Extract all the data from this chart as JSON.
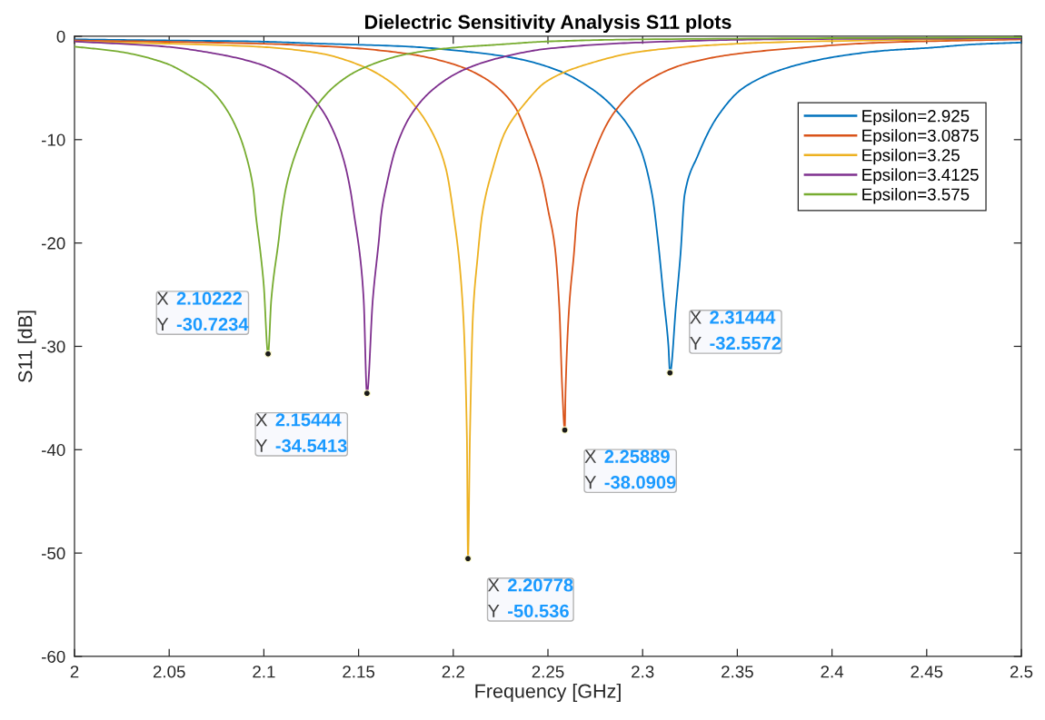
{
  "chart_data": {
    "type": "line",
    "title": "Dielectric Sensitivity Analysis S11 plots",
    "xlabel": "Frequency [GHz]",
    "ylabel": "S11 [dB]",
    "xlim": [
      2,
      2.5
    ],
    "ylim": [
      -60,
      0
    ],
    "xticks": [
      2,
      2.05,
      2.1,
      2.15,
      2.2,
      2.25,
      2.3,
      2.35,
      2.4,
      2.45,
      2.5
    ],
    "yticks": [
      -60,
      -50,
      -40,
      -30,
      -20,
      -10,
      0
    ],
    "legend": "top right",
    "line_style": "solid",
    "series": [
      {
        "name": "Epsilon=2.925",
        "color": "#0072bd",
        "x": [
          2.0,
          2.048,
          2.0951,
          2.128,
          2.1768,
          2.2081,
          2.2321,
          2.2553,
          2.2725,
          2.2862,
          2.2982,
          2.305,
          2.308,
          2.3112,
          2.3136,
          2.31444,
          2.3176,
          2.32,
          2.3222,
          2.329,
          2.3394,
          2.3531,
          2.3754,
          2.4012,
          2.4269,
          2.4526,
          2.473,
          2.5
        ],
        "values": [
          -0.3,
          -0.4,
          -0.5,
          -0.7,
          -1.0,
          -1.5,
          -2.1,
          -3.3,
          -5.0,
          -7.2,
          -10.6,
          -15.3,
          -19.6,
          -25.5,
          -29.9,
          -32.5572,
          -26.1,
          -21.1,
          -15.3,
          -11.6,
          -7.8,
          -5.0,
          -3.1,
          -2.0,
          -1.4,
          -1.1,
          -0.8,
          -0.6
        ]
      },
      {
        "name": "Epsilon=3.0875",
        "color": "#d95319",
        "x": [
          2.0,
          2.0961,
          2.1441,
          2.1761,
          2.2001,
          2.2161,
          2.2321,
          2.2399,
          2.2467,
          2.2502,
          2.2536,
          2.256,
          2.2576,
          2.25889,
          2.2593,
          2.2612,
          2.2637,
          2.2656,
          2.2725,
          2.2845,
          2.3016,
          2.3239,
          2.3497,
          2.384,
          2.4269,
          2.5
        ],
        "values": [
          -0.4,
          -0.7,
          -1.1,
          -1.7,
          -2.7,
          -4.0,
          -6.7,
          -10.0,
          -13.8,
          -16.9,
          -20.3,
          -26.2,
          -34.3,
          -38.0909,
          -34.3,
          -26.2,
          -21.1,
          -16.9,
          -12.2,
          -7.5,
          -4.4,
          -2.6,
          -1.7,
          -1.1,
          -0.6,
          -0.3
        ]
      },
      {
        "name": "Epsilon=3.25",
        "color": "#edb120",
        "x": [
          2.0,
          2.0961,
          2.1281,
          2.1521,
          2.1681,
          2.1809,
          2.1905,
          2.1961,
          2.2001,
          2.2048,
          2.2072,
          2.20778,
          2.2088,
          2.2104,
          2.2128,
          2.2153,
          2.2209,
          2.2273,
          2.2369,
          2.2498,
          2.2725,
          2.2982,
          2.3325,
          2.3668,
          2.5
        ],
        "values": [
          -0.5,
          -1.0,
          -1.6,
          -2.9,
          -4.6,
          -7.0,
          -9.9,
          -12.8,
          -17.2,
          -25.5,
          -38.7,
          -50.536,
          -38.7,
          -27.0,
          -21.5,
          -17.2,
          -12.8,
          -9.3,
          -6.7,
          -4.3,
          -2.6,
          -1.5,
          -0.9,
          -0.6,
          -0.2
        ]
      },
      {
        "name": "Epsilon=3.4125",
        "color": "#7e2f8e",
        "x": [
          2.0,
          2.048,
          2.072,
          2.0961,
          2.1121,
          2.1233,
          2.1313,
          2.1377,
          2.1425,
          2.1457,
          2.1476,
          2.1512,
          2.1527,
          2.15444,
          2.1575,
          2.1608,
          2.162,
          2.1649,
          2.1697,
          2.1777,
          2.1889,
          2.2049,
          2.2241,
          2.2498,
          2.2982,
          2.3668,
          2.5
        ],
        "values": [
          -0.5,
          -1.0,
          -1.6,
          -2.6,
          -3.9,
          -5.5,
          -7.3,
          -9.6,
          -12.2,
          -14.9,
          -17.2,
          -22.0,
          -25.5,
          -34.5413,
          -25.5,
          -19.6,
          -17.2,
          -14.3,
          -10.8,
          -7.6,
          -5.2,
          -3.3,
          -2.1,
          -1.2,
          -0.6,
          -0.3,
          -0.2
        ]
      },
      {
        "name": "Epsilon=3.575",
        "color": "#77ac30",
        "x": [
          2.0,
          2.024,
          2.048,
          2.0608,
          2.072,
          2.08,
          2.0865,
          2.0913,
          2.0945,
          2.0957,
          2.0983,
          2.0999,
          2.10222,
          2.1039,
          2.1079,
          2.1094,
          2.1121,
          2.1185,
          2.1281,
          2.1409,
          2.1521,
          2.1761,
          2.2001,
          2.2241,
          2.2498,
          2.2982,
          2.5
        ],
        "values": [
          -1.0,
          -1.5,
          -2.6,
          -3.8,
          -5.2,
          -7.0,
          -9.3,
          -12.0,
          -14.9,
          -17.2,
          -21.1,
          -24.0,
          -30.7234,
          -25.5,
          -19.6,
          -17.2,
          -14.3,
          -10.5,
          -6.7,
          -4.3,
          -3.1,
          -1.7,
          -1.1,
          -0.8,
          -0.5,
          -0.3,
          -0.1
        ]
      }
    ],
    "annotations": [
      {
        "text": "X 2.10222\nY -30.7234",
        "x": 2.10222,
        "y": -30.7234
      },
      {
        "text": "X 2.15444\nY -34.5413",
        "x": 2.15444,
        "y": -34.5413
      },
      {
        "text": "X 2.20778\nY -50.536",
        "x": 2.20778,
        "y": -50.536
      },
      {
        "text": "X 2.25889\nY -38.0909",
        "x": 2.25889,
        "y": -38.0909
      },
      {
        "text": "X 2.31444\nY -32.5572",
        "x": 2.31444,
        "y": -32.5572
      }
    ]
  }
}
